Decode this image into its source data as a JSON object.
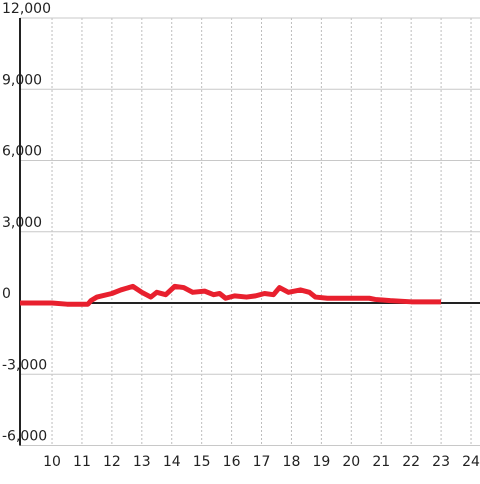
{
  "chart_data": {
    "type": "line",
    "x": [
      8.93,
      10,
      10.5,
      11.2,
      11.3,
      11.5,
      12,
      12.3,
      12.7,
      13,
      13.3,
      13.5,
      13.8,
      14.1,
      14.4,
      14.7,
      15.1,
      15.4,
      15.6,
      15.8,
      16.1,
      16.5,
      16.8,
      17.1,
      17.4,
      17.6,
      17.9,
      18.3,
      18.6,
      18.8,
      19.2,
      20,
      20.6,
      20.8,
      21.3,
      22,
      23
    ],
    "series": [
      {
        "color": "#e8202e",
        "values": [
          0,
          0,
          -50,
          -50,
          100,
          250,
          400,
          550,
          700,
          450,
          250,
          450,
          350,
          700,
          650,
          450,
          500,
          350,
          400,
          200,
          300,
          250,
          300,
          400,
          350,
          650,
          450,
          550,
          450,
          250,
          200,
          200,
          200,
          150,
          100,
          50,
          50
        ]
      }
    ],
    "xlim": [
      8.93,
      24.3
    ],
    "xticks": [
      10,
      11,
      12,
      13,
      14,
      15,
      16,
      17,
      18,
      19,
      20,
      21,
      22,
      23,
      24
    ],
    "ylim": [
      -6000,
      12000
    ],
    "yticks": [
      {
        "value": -6000,
        "label": "-6,000"
      },
      {
        "value": -3000,
        "label": "-3,000"
      },
      0,
      {
        "value": 3000,
        "label": "3,000"
      },
      {
        "value": 6000,
        "label": "6,000"
      },
      {
        "value": 9000,
        "label": "9,000"
      },
      {
        "value": 12000,
        "label": "12,000"
      }
    ],
    "grid": true
  }
}
